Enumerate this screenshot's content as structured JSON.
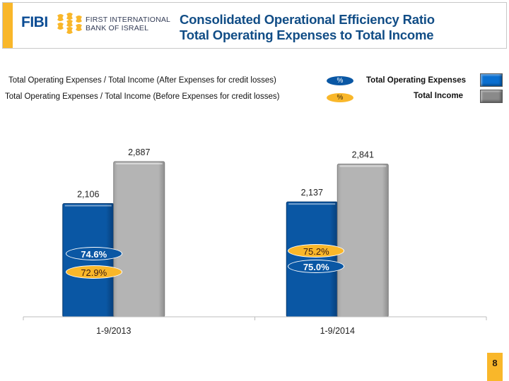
{
  "header": {
    "logo_abbr": "FIBI",
    "logo_line1": "FIRST INTERNATIONAL",
    "logo_line2": "BANK OF ISRAEL",
    "title_line1": "Consolidated Operational Efficiency Ratio",
    "title_line2": "Total Operating Expenses to Total Income"
  },
  "legend": {
    "ratio_after": "Total Operating Expenses / Total Income (After Expenses for credit losses)",
    "ratio_before": "Total Operating Expenses / Total Income (Before Expenses for credit losses)",
    "ratio_after_symbol": "%",
    "ratio_before_symbol": "%",
    "series_expenses": "Total Operating Expenses",
    "series_income": "Total Income"
  },
  "colors": {
    "expenses": "#0a57a4",
    "income": "#b3b3b3",
    "after_oval": "#0a57a4",
    "before_oval": "#f9b72a",
    "accent": "#f9b72a",
    "title": "#114d86"
  },
  "chart_data": {
    "type": "bar",
    "title": "Total Operating Expenses to Total Income",
    "categories": [
      "1-9/2013",
      "1-9/2014"
    ],
    "series": [
      {
        "name": "Total Operating Expenses",
        "values": [
          2106,
          2137
        ],
        "labels": [
          "2,106",
          "2,137"
        ]
      },
      {
        "name": "Total Income",
        "values": [
          2887,
          2841
        ],
        "labels": [
          "2,887",
          "2,841"
        ]
      }
    ],
    "ratios": {
      "after_credit_losses": {
        "values": [
          74.6,
          75.0
        ],
        "labels": [
          "74.6%",
          "75.0%"
        ]
      },
      "before_credit_losses": {
        "values": [
          72.9,
          75.2
        ],
        "labels": [
          "72.9%",
          "75.2%"
        ]
      }
    },
    "xlabel": "",
    "ylabel": "",
    "ylim": [
      0,
      3000
    ],
    "grid": false,
    "legend": "top"
  },
  "footer": {
    "page_number": "8"
  }
}
